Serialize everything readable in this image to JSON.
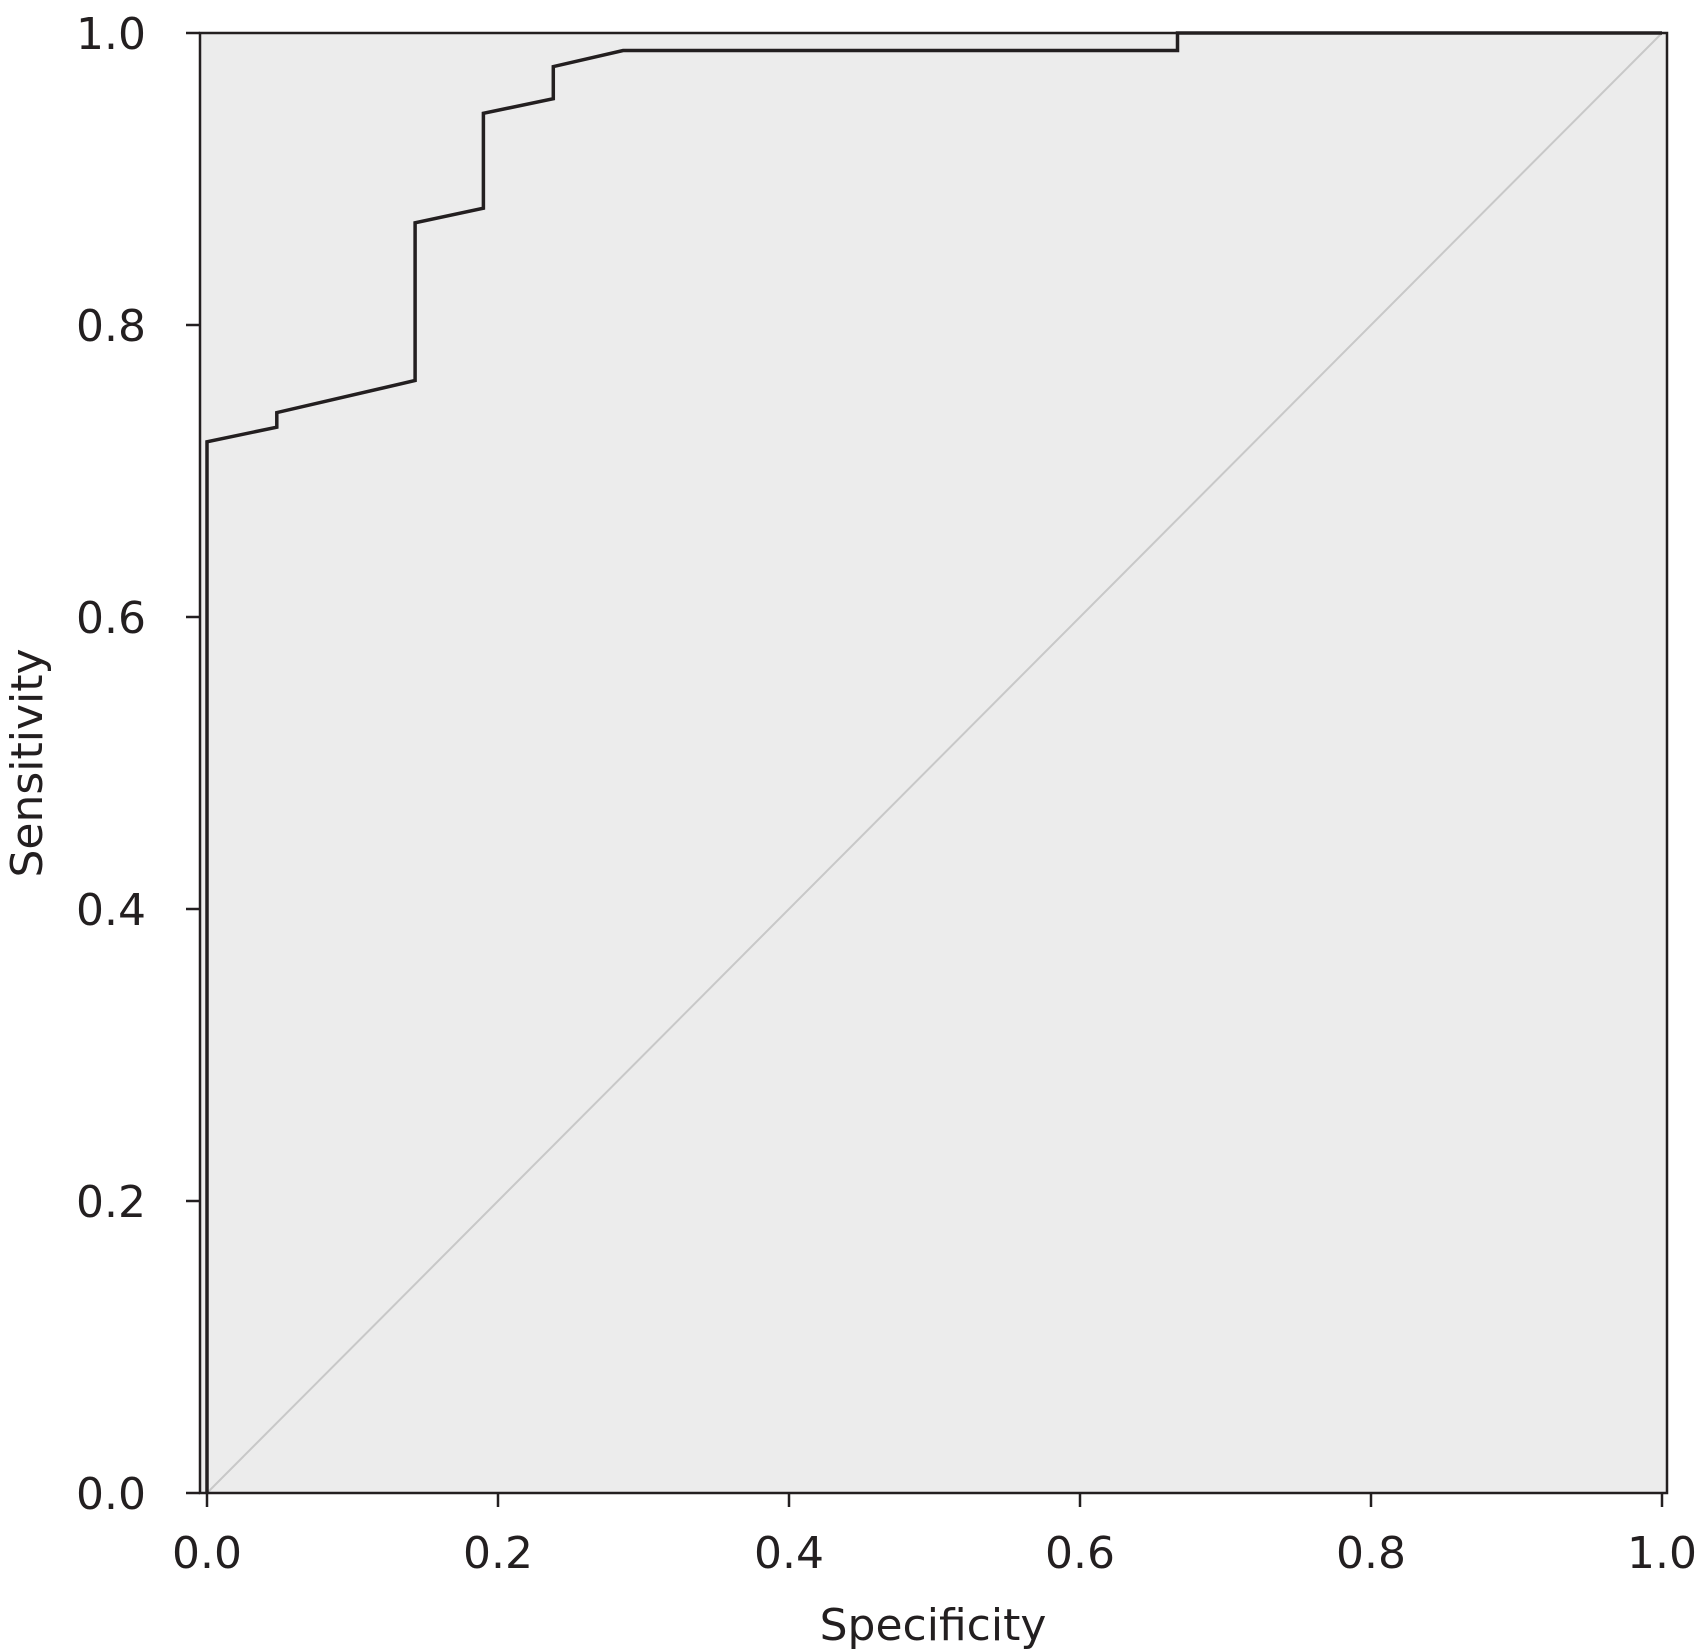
{
  "chart_data": {
    "type": "line",
    "title": "",
    "xlabel": "Specificity",
    "ylabel": "Sensitivity",
    "xlim": [
      0.0,
      1.0
    ],
    "ylim": [
      0.0,
      1.0
    ],
    "xticks": [
      "0.0",
      "0.2",
      "0.4",
      "0.6",
      "0.8",
      "1.0"
    ],
    "yticks": [
      "0.0",
      "0.2",
      "0.4",
      "0.6",
      "0.8",
      "1.0"
    ],
    "grid": false,
    "legend": "none",
    "colors": {
      "plot_background": "#ececec",
      "curve": "#231f20",
      "reference_line": "#c8c8c8",
      "frame": "#231f20"
    },
    "series": [
      {
        "values": [
          [
            0.0,
            0.0
          ],
          [
            0.0,
            0.72
          ],
          [
            0.048,
            0.73
          ],
          [
            0.048,
            0.74
          ],
          [
            0.143,
            0.762
          ],
          [
            0.143,
            0.87
          ],
          [
            0.19,
            0.88
          ],
          [
            0.19,
            0.945
          ],
          [
            0.238,
            0.955
          ],
          [
            0.238,
            0.977
          ],
          [
            0.286,
            0.988
          ],
          [
            0.667,
            0.988
          ],
          [
            0.667,
            1.0
          ],
          [
            1.0,
            1.0
          ]
        ]
      }
    ],
    "reference_line": [
      [
        0.0,
        0.0
      ],
      [
        1.0,
        1.0
      ]
    ]
  }
}
